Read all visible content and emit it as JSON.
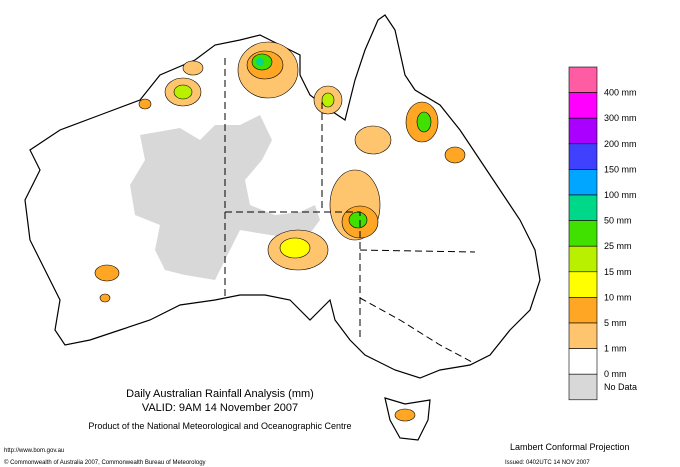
{
  "title": "Daily Australian Rainfall Analysis (mm)",
  "subtitle": "VALID: 9AM 14 November 2007",
  "producer": "Product of the National Meteorological and Oceanographic Centre",
  "footer": {
    "url": "http://www.bom.gov.au",
    "copyright": "© Commonwealth of Australia 2007, Commonwealth Bureau of Meteorology",
    "projection": "Lambert Conformal Projection",
    "issued": "Issued: 0402UTC 14 NOV 2007"
  },
  "legend": {
    "colors": [
      "#ff5ca3",
      "#ff00ff",
      "#aa00ff",
      "#4040ff",
      "#00a6ff",
      "#00d889",
      "#40e000",
      "#b8f000",
      "#ffff00",
      "#ffa624",
      "#ffc46e",
      "#ffffff",
      "#d8d8d8"
    ],
    "labels": [
      "400 mm",
      "300 mm",
      "200 mm",
      "150 mm",
      "100 mm",
      "50 mm",
      "25 mm",
      "15 mm",
      "10 mm",
      "5 mm",
      "1 mm",
      "0 mm"
    ],
    "nodata": "No Data"
  }
}
